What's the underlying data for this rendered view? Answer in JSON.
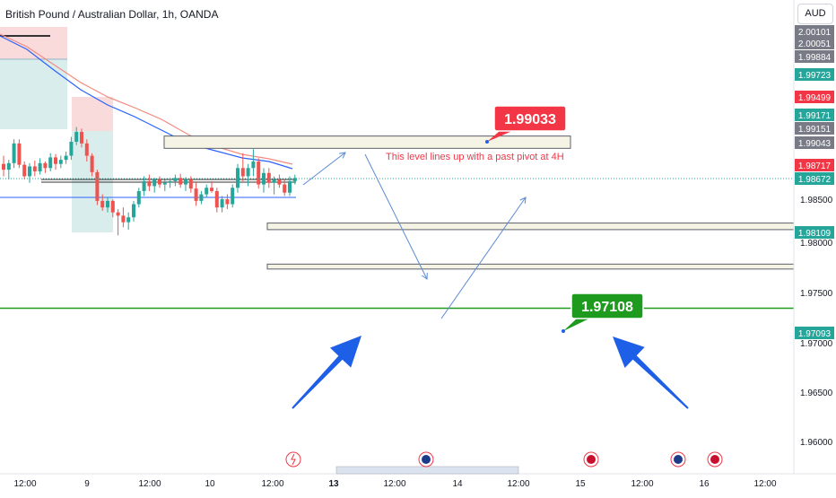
{
  "header": {
    "title": "British Pound / Australian Dollar, 1h, OANDA",
    "currency": "AUD"
  },
  "colors": {
    "up": "#26a69a",
    "down": "#ef5350",
    "accent_green": "#1e9b1e",
    "callout_red": "#f23645",
    "arrow_blue": "#1e5fe8",
    "ma_red": "#f48a80",
    "ma_blue": "#2962ff",
    "zone_fill": "#f5f3e4",
    "zone_stroke": "#5d606b"
  },
  "chart_data": {
    "type": "candlestick",
    "symbol": "GBPAUD",
    "timeframe": "1h",
    "ylim": [
      1.955,
      2.0015
    ],
    "x_tick_labels": [
      "12:00",
      "9",
      "12:00",
      "10",
      "12:00",
      "13",
      "12:00",
      "14",
      "12:00",
      "15",
      "12:00",
      "16",
      "12:00"
    ],
    "y_tick_labels": [
      "1.98500",
      "1.98000",
      "1.97500",
      "1.97000",
      "1.96500",
      "1.96000"
    ],
    "price_tags": [
      {
        "value": "2.00101",
        "color": "#787b86"
      },
      {
        "value": "2.00051",
        "color": "#787b86"
      },
      {
        "value": "1.99884",
        "color": "#787b86"
      },
      {
        "value": "1.99723",
        "color": "#26a69a"
      },
      {
        "value": "1.99499",
        "color": "#f23645"
      },
      {
        "value": "1.99171",
        "color": "#26a69a"
      },
      {
        "value": "1.99151",
        "color": "#787b86"
      },
      {
        "value": "1.99043",
        "color": "#787b86"
      },
      {
        "value": "1.98717",
        "color": "#f23645"
      },
      {
        "value": "1.98672",
        "color": "#26a69a"
      },
      {
        "value": "1.98109",
        "color": "#26a69a"
      },
      {
        "value": "1.97093",
        "color": "#26a69a"
      }
    ],
    "horizontal_levels": [
      {
        "name": "support-line",
        "value": 1.97093,
        "color": "#1e9b1e"
      },
      {
        "name": "current-price-line",
        "value": 1.98672,
        "color": "#26a69a"
      }
    ],
    "zones": [
      {
        "name": "zone-upper",
        "top": 1.9919,
        "bottom": 1.9904
      },
      {
        "name": "zone-middle",
        "top": 1.9813,
        "bottom": 1.9805
      },
      {
        "name": "zone-lower",
        "top": 1.9763,
        "bottom": 1.9757
      }
    ],
    "callouts": [
      {
        "name": "callout-upper",
        "text": "1.99033",
        "color": "#f23645"
      },
      {
        "name": "callout-lower",
        "text": "1.97108",
        "color": "#1e9b1e"
      }
    ],
    "annotation": "This level lines up with a past pivot at 4H",
    "candles": [
      [
        1.9885,
        1.9895,
        1.987,
        1.9878
      ],
      [
        1.9878,
        1.989,
        1.9866,
        1.9886
      ],
      [
        1.9886,
        1.9915,
        1.988,
        1.991
      ],
      [
        1.991,
        1.9915,
        1.988,
        1.9884
      ],
      [
        1.9884,
        1.9888,
        1.9866,
        1.987
      ],
      [
        1.987,
        1.9886,
        1.9862,
        1.9882
      ],
      [
        1.9882,
        1.9889,
        1.987,
        1.9876
      ],
      [
        1.9876,
        1.9892,
        1.9872,
        1.9886
      ],
      [
        1.9886,
        1.9888,
        1.9874,
        1.988
      ],
      [
        1.988,
        1.9898,
        1.9876,
        1.9893
      ],
      [
        1.9893,
        1.9897,
        1.9878,
        1.9885
      ],
      [
        1.9885,
        1.9895,
        1.988,
        1.989
      ],
      [
        1.989,
        1.99,
        1.9885,
        1.9895
      ],
      [
        1.9895,
        1.9918,
        1.989,
        1.9912
      ],
      [
        1.9912,
        1.993,
        1.9908,
        1.9924
      ],
      [
        1.9924,
        1.9928,
        1.9905,
        1.991
      ],
      [
        1.991,
        1.9915,
        1.9888,
        1.9895
      ],
      [
        1.9895,
        1.9898,
        1.987,
        1.9875
      ],
      [
        1.9875,
        1.9878,
        1.9835,
        1.984
      ],
      [
        1.984,
        1.9848,
        1.9828,
        1.9832
      ],
      [
        1.9832,
        1.9845,
        1.9826,
        1.984
      ],
      [
        1.984,
        1.9842,
        1.982,
        1.9826
      ],
      [
        1.9826,
        1.983,
        1.9798,
        1.9822
      ],
      [
        1.9822,
        1.9832,
        1.9808,
        1.9814
      ],
      [
        1.9814,
        1.9826,
        1.9805,
        1.982
      ],
      [
        1.982,
        1.984,
        1.9815,
        1.9836
      ],
      [
        1.9836,
        1.9856,
        1.9832,
        1.9852
      ],
      [
        1.9852,
        1.987,
        1.9846,
        1.9864
      ],
      [
        1.9864,
        1.9872,
        1.9852,
        1.9858
      ],
      [
        1.9858,
        1.9868,
        1.985,
        1.9866
      ],
      [
        1.9866,
        1.987,
        1.9856,
        1.986
      ],
      [
        1.986,
        1.9866,
        1.9852,
        1.9862
      ],
      [
        1.9862,
        1.9868,
        1.9856,
        1.9864
      ],
      [
        1.9864,
        1.9872,
        1.9858,
        1.9868
      ],
      [
        1.9868,
        1.9873,
        1.9856,
        1.986
      ],
      [
        1.986,
        1.9869,
        1.9852,
        1.9866
      ],
      [
        1.9866,
        1.987,
        1.985,
        1.9855
      ],
      [
        1.9855,
        1.9862,
        1.9834,
        1.984
      ],
      [
        1.984,
        1.9852,
        1.9836,
        1.9848
      ],
      [
        1.9848,
        1.986,
        1.9844,
        1.9856
      ],
      [
        1.9856,
        1.9864,
        1.985,
        1.9852
      ],
      [
        1.9852,
        1.9856,
        1.9826,
        1.9832
      ],
      [
        1.9832,
        1.9846,
        1.9826,
        1.9842
      ],
      [
        1.9842,
        1.9848,
        1.983,
        1.9836
      ],
      [
        1.9836,
        1.986,
        1.9832,
        1.9856
      ],
      [
        1.9856,
        1.9885,
        1.985,
        1.988
      ],
      [
        1.988,
        1.9898,
        1.9864,
        1.987
      ],
      [
        1.987,
        1.9885,
        1.9858,
        1.988
      ],
      [
        1.988,
        1.9903,
        1.987,
        1.9888
      ],
      [
        1.9888,
        1.9892,
        1.9855,
        1.986
      ],
      [
        1.986,
        1.988,
        1.985,
        1.9874
      ],
      [
        1.9874,
        1.988,
        1.9856,
        1.9862
      ],
      [
        1.9862,
        1.987,
        1.9848,
        1.9866
      ],
      [
        1.9866,
        1.9872,
        1.9856,
        1.986
      ],
      [
        1.986,
        1.9866,
        1.9846,
        1.985
      ],
      [
        1.985,
        1.987,
        1.9846,
        1.9864
      ],
      [
        1.9864,
        1.9872,
        1.986,
        1.9868
      ]
    ]
  }
}
